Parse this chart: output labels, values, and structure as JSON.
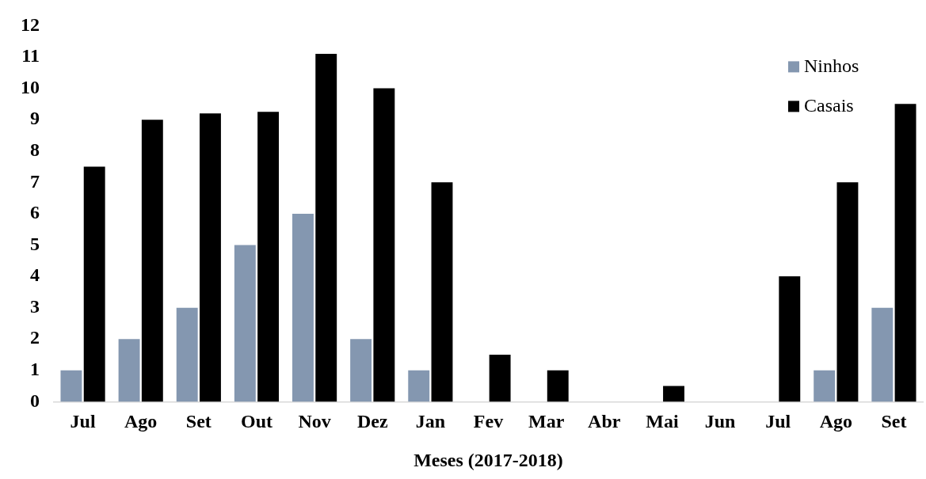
{
  "chart_data": {
    "type": "bar",
    "xlabel": "Meses (2017-2018)",
    "categories": [
      "Jul",
      "Ago",
      "Set",
      "Out",
      "Nov",
      "Dez",
      "Jan",
      "Fev",
      "Mar",
      "Abr",
      "Mai",
      "Jun",
      "Jul",
      "Ago",
      "Set"
    ],
    "series": [
      {
        "name": "Ninhos",
        "color": "#8497b0",
        "values": [
          1,
          2,
          3,
          5,
          6,
          2,
          1,
          null,
          null,
          null,
          null,
          null,
          null,
          1,
          3
        ]
      },
      {
        "name": "Casais",
        "color": "#000000",
        "values": [
          7.5,
          9,
          9.2,
          9.25,
          11.1,
          10,
          7,
          1.5,
          1,
          null,
          0.5,
          null,
          4,
          7,
          9.5
        ]
      }
    ],
    "ylim": [
      0,
      12
    ],
    "yticks": [
      0,
      1,
      2,
      3,
      4,
      5,
      6,
      7,
      8,
      9,
      10,
      11,
      12
    ],
    "grid": false,
    "legend": "top right"
  }
}
